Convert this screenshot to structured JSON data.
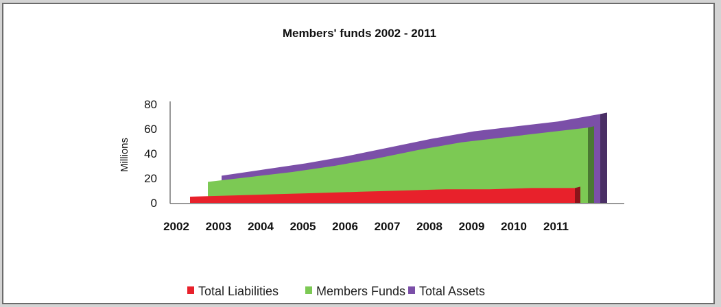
{
  "chart_data": {
    "type": "area",
    "title": "Members' funds 2002 - 2011",
    "ylabel": "Millions",
    "xlabel": "",
    "x": [
      "2002",
      "2003",
      "2004",
      "2005",
      "2006",
      "2007",
      "2008",
      "2009",
      "2010",
      "2011"
    ],
    "ylim": [
      0,
      80
    ],
    "yticks": [
      "0",
      "20",
      "40",
      "60",
      "80"
    ],
    "grid": false,
    "legend_position": "bottom",
    "series": [
      {
        "name": "Total Liabilities",
        "color": "#e8212b",
        "values": [
          5,
          6,
          7,
          8,
          9,
          10,
          11,
          11,
          12,
          12
        ]
      },
      {
        "name": "Members Funds",
        "color": "#7cc954",
        "values": [
          17,
          21,
          25,
          30,
          36,
          43,
          49,
          53,
          57,
          61
        ]
      },
      {
        "name": "Total Assets",
        "color": "#7b4fa8",
        "values": [
          22,
          27,
          32,
          38,
          45,
          52,
          58,
          62,
          66,
          72
        ]
      }
    ]
  }
}
